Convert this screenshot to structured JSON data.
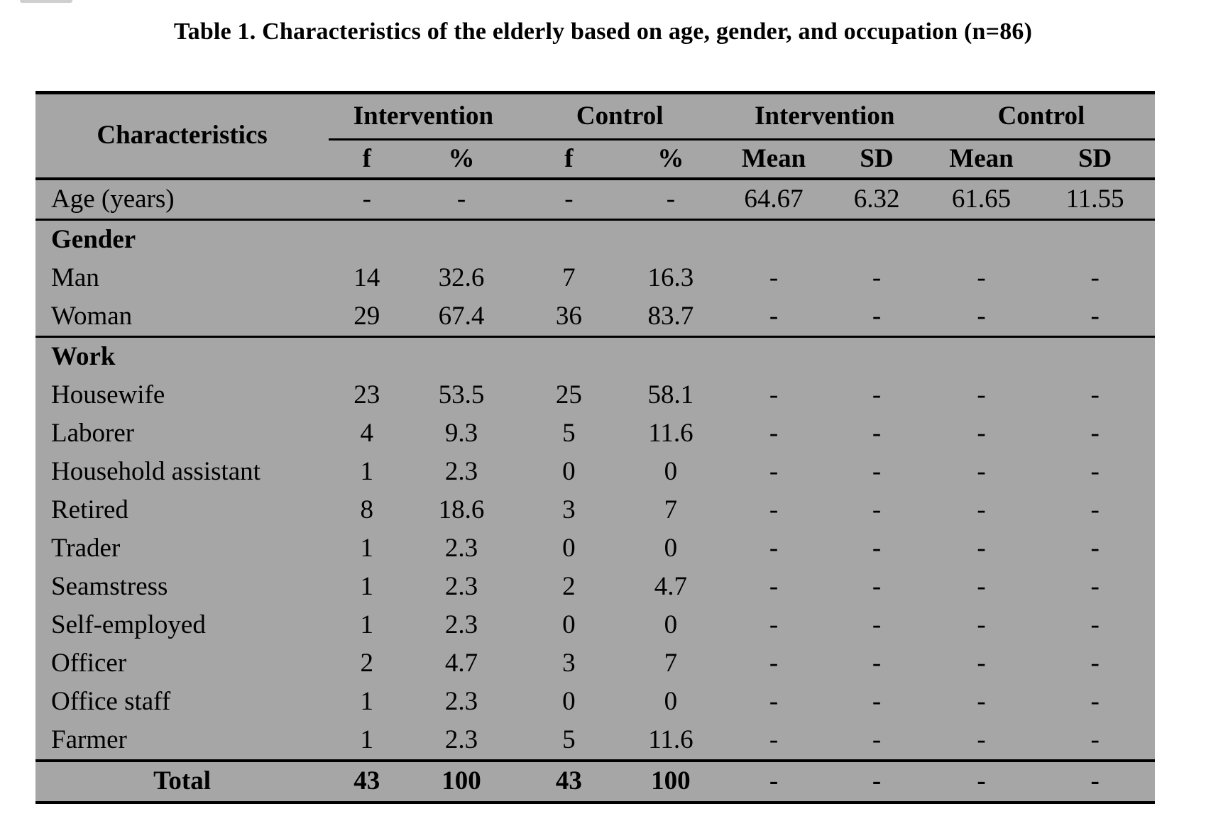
{
  "title": "Table 1. Characteristics of the elderly based on age, gender, and occupation (n=86)",
  "table": {
    "col1_header": "Characteristics",
    "groups": [
      {
        "label": "Intervention"
      },
      {
        "label": "Control"
      },
      {
        "label": "Intervention"
      },
      {
        "label": "Control"
      }
    ],
    "subheaders": [
      "f",
      "%",
      "f",
      "%",
      "Mean",
      "SD",
      "Mean",
      "SD"
    ],
    "rows": [
      {
        "label": "Age (years)",
        "style": "data",
        "rule_below": "thin",
        "cells": [
          "-",
          "-",
          "-",
          "-",
          "64.67",
          "6.32",
          "61.65",
          "11.55"
        ]
      },
      {
        "label": "Gender",
        "style": "section",
        "cells": [
          "",
          "",
          "",
          "",
          "",
          "",
          "",
          ""
        ]
      },
      {
        "label": "Man",
        "style": "data",
        "cells": [
          "14",
          "32.6",
          "7",
          "16.3",
          "-",
          "-",
          "-",
          "-"
        ]
      },
      {
        "label": "Woman",
        "style": "data",
        "rule_below": "thin",
        "cells": [
          "29",
          "67.4",
          "36",
          "83.7",
          "-",
          "-",
          "-",
          "-"
        ]
      },
      {
        "label": "Work",
        "style": "section",
        "cells": [
          "",
          "",
          "",
          "",
          "",
          "",
          "",
          ""
        ]
      },
      {
        "label": "Housewife",
        "style": "data",
        "cells": [
          "23",
          "53.5",
          "25",
          "58.1",
          "-",
          "-",
          "-",
          "-"
        ]
      },
      {
        "label": "Laborer",
        "style": "data",
        "cells": [
          "4",
          "9.3",
          "5",
          "11.6",
          "-",
          "-",
          "-",
          "-"
        ]
      },
      {
        "label": "Household assistant",
        "style": "data",
        "cells": [
          "1",
          "2.3",
          "0",
          "0",
          "-",
          "-",
          "-",
          "-"
        ]
      },
      {
        "label": "Retired",
        "style": "data",
        "cells": [
          "8",
          "18.6",
          "3",
          "7",
          "-",
          "-",
          "-",
          "-"
        ]
      },
      {
        "label": "Trader",
        "style": "data",
        "cells": [
          "1",
          "2.3",
          "0",
          "0",
          "-",
          "-",
          "-",
          "-"
        ]
      },
      {
        "label": "Seamstress",
        "style": "data",
        "cells": [
          "1",
          "2.3",
          "2",
          "4.7",
          "-",
          "-",
          "-",
          "-"
        ]
      },
      {
        "label": "Self-employed",
        "style": "data",
        "cells": [
          "1",
          "2.3",
          "0",
          "0",
          "-",
          "-",
          "-",
          "-"
        ]
      },
      {
        "label": "Officer",
        "style": "data",
        "cells": [
          "2",
          "4.7",
          "3",
          "7",
          "-",
          "-",
          "-",
          "-"
        ]
      },
      {
        "label": "Office staff",
        "style": "data",
        "cells": [
          "1",
          "2.3",
          "0",
          "0",
          "-",
          "-",
          "-",
          "-"
        ]
      },
      {
        "label": "Farmer",
        "style": "data",
        "rule_below": "thick",
        "cells": [
          "1",
          "2.3",
          "5",
          "11.6",
          "-",
          "-",
          "-",
          "-"
        ]
      },
      {
        "label": "Total",
        "style": "total",
        "cells": [
          "43",
          "100",
          "43",
          "100",
          "-",
          "-",
          "-",
          "-"
        ]
      }
    ],
    "colors": {
      "table_bg": "#a6a6a6",
      "rule": "#000000",
      "text": "#000000",
      "page_bg": "#ffffff"
    }
  }
}
